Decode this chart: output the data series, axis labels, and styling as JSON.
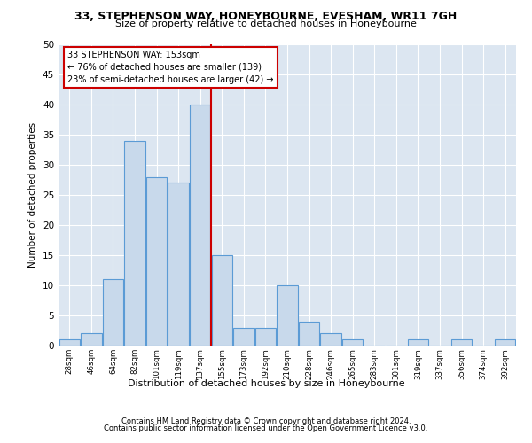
{
  "title1": "33, STEPHENSON WAY, HONEYBOURNE, EVESHAM, WR11 7GH",
  "title2": "Size of property relative to detached houses in Honeybourne",
  "xlabel": "Distribution of detached houses by size in Honeybourne",
  "ylabel": "Number of detached properties",
  "bin_labels": [
    "28sqm",
    "46sqm",
    "64sqm",
    "82sqm",
    "101sqm",
    "119sqm",
    "137sqm",
    "155sqm",
    "173sqm",
    "192sqm",
    "210sqm",
    "228sqm",
    "246sqm",
    "265sqm",
    "283sqm",
    "301sqm",
    "319sqm",
    "337sqm",
    "356sqm",
    "374sqm",
    "392sqm"
  ],
  "bar_values": [
    1,
    2,
    11,
    34,
    28,
    27,
    40,
    15,
    3,
    3,
    10,
    4,
    2,
    1,
    0,
    0,
    1,
    0,
    1,
    0,
    1
  ],
  "bar_color": "#c8d9eb",
  "bar_edge_color": "#5b9bd5",
  "annotation_line1": "33 STEPHENSON WAY: 153sqm",
  "annotation_line2": "← 76% of detached houses are smaller (139)",
  "annotation_line3": "23% of semi-detached houses are larger (42) →",
  "vline_color": "#cc0000",
  "vline_x": 6.5,
  "annotation_box_color": "#ffffff",
  "annotation_box_edge": "#cc0000",
  "ylim": [
    0,
    50
  ],
  "yticks": [
    0,
    5,
    10,
    15,
    20,
    25,
    30,
    35,
    40,
    45,
    50
  ],
  "background_color": "#dce6f1",
  "footer1": "Contains HM Land Registry data © Crown copyright and database right 2024.",
  "footer2": "Contains public sector information licensed under the Open Government Licence v3.0."
}
